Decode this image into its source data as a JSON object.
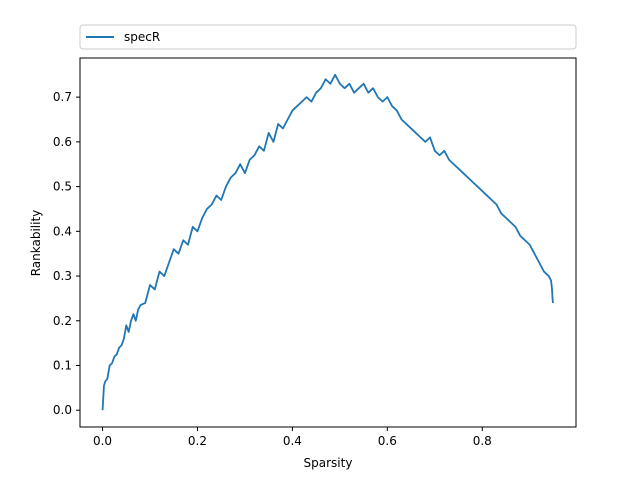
{
  "chart_data": {
    "type": "line",
    "xlabel": "Sparsity",
    "ylabel": "Rankability",
    "xlim": [
      -0.0475,
      0.9975
    ],
    "ylim": [
      -0.0375,
      0.7875
    ],
    "xticks": [
      0.0,
      0.2,
      0.4,
      0.6,
      0.8
    ],
    "xtick_labels": [
      "0.0",
      "0.2",
      "0.4",
      "0.6",
      "0.8"
    ],
    "yticks": [
      0.0,
      0.1,
      0.2,
      0.3,
      0.4,
      0.5,
      0.6,
      0.7
    ],
    "ytick_labels": [
      "0.0",
      "0.1",
      "0.2",
      "0.3",
      "0.4",
      "0.5",
      "0.6",
      "0.7"
    ],
    "grid": false,
    "legend_position": "top, above plot, expanded",
    "series": [
      {
        "name": "specR",
        "color": "#1f77b4",
        "x": [
          0.0,
          0.003,
          0.006,
          0.01,
          0.015,
          0.02,
          0.025,
          0.03,
          0.035,
          0.04,
          0.045,
          0.05,
          0.055,
          0.06,
          0.065,
          0.07,
          0.075,
          0.08,
          0.09,
          0.1,
          0.11,
          0.12,
          0.13,
          0.14,
          0.15,
          0.16,
          0.17,
          0.18,
          0.19,
          0.2,
          0.21,
          0.22,
          0.23,
          0.24,
          0.25,
          0.26,
          0.27,
          0.28,
          0.29,
          0.3,
          0.31,
          0.32,
          0.33,
          0.34,
          0.35,
          0.36,
          0.37,
          0.38,
          0.39,
          0.4,
          0.41,
          0.42,
          0.43,
          0.44,
          0.45,
          0.46,
          0.47,
          0.48,
          0.49,
          0.5,
          0.51,
          0.52,
          0.53,
          0.54,
          0.55,
          0.56,
          0.57,
          0.58,
          0.59,
          0.6,
          0.61,
          0.62,
          0.63,
          0.64,
          0.65,
          0.66,
          0.67,
          0.68,
          0.69,
          0.7,
          0.71,
          0.72,
          0.73,
          0.74,
          0.75,
          0.76,
          0.77,
          0.78,
          0.79,
          0.8,
          0.81,
          0.82,
          0.83,
          0.84,
          0.85,
          0.86,
          0.87,
          0.88,
          0.89,
          0.9,
          0.91,
          0.92,
          0.93,
          0.94,
          0.945,
          0.947,
          0.948,
          0.949
        ],
        "y": [
          0.0,
          0.055,
          0.065,
          0.07,
          0.1,
          0.105,
          0.12,
          0.125,
          0.14,
          0.145,
          0.16,
          0.19,
          0.175,
          0.2,
          0.215,
          0.2,
          0.225,
          0.235,
          0.24,
          0.28,
          0.27,
          0.31,
          0.3,
          0.33,
          0.36,
          0.35,
          0.38,
          0.37,
          0.41,
          0.4,
          0.43,
          0.45,
          0.46,
          0.48,
          0.47,
          0.5,
          0.52,
          0.53,
          0.55,
          0.53,
          0.56,
          0.57,
          0.59,
          0.58,
          0.62,
          0.6,
          0.64,
          0.63,
          0.65,
          0.67,
          0.68,
          0.69,
          0.7,
          0.69,
          0.71,
          0.72,
          0.74,
          0.73,
          0.75,
          0.73,
          0.72,
          0.73,
          0.71,
          0.72,
          0.73,
          0.71,
          0.72,
          0.7,
          0.69,
          0.7,
          0.68,
          0.67,
          0.65,
          0.64,
          0.63,
          0.62,
          0.61,
          0.6,
          0.61,
          0.58,
          0.57,
          0.58,
          0.56,
          0.55,
          0.54,
          0.53,
          0.52,
          0.51,
          0.5,
          0.49,
          0.48,
          0.47,
          0.46,
          0.44,
          0.43,
          0.42,
          0.41,
          0.39,
          0.38,
          0.37,
          0.35,
          0.33,
          0.31,
          0.3,
          0.29,
          0.27,
          0.25,
          0.24
        ]
      }
    ]
  }
}
